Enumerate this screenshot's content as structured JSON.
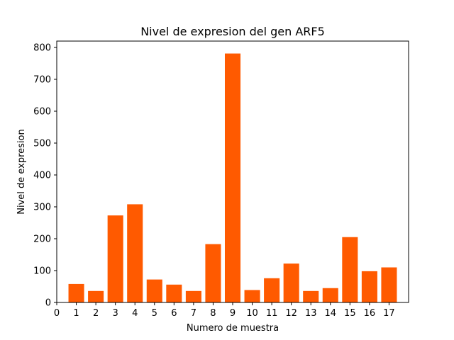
{
  "chart_data": {
    "type": "bar",
    "title": "Nivel de expresion del gen ARF5",
    "xlabel": "Numero de muestra",
    "ylabel": "Nivel de expresion",
    "categories": [
      1,
      2,
      3,
      4,
      5,
      6,
      7,
      8,
      9,
      10,
      11,
      12,
      13,
      14,
      15,
      16,
      17
    ],
    "values": [
      58,
      36,
      273,
      308,
      72,
      56,
      36,
      183,
      781,
      39,
      76,
      122,
      36,
      45,
      205,
      98,
      110
    ],
    "xlim": [
      0,
      18
    ],
    "ylim": [
      0,
      820
    ],
    "xticks": [
      "0",
      "1",
      "2",
      "3",
      "4",
      "5",
      "6",
      "7",
      "8",
      "9",
      "10",
      "11",
      "12",
      "13",
      "14",
      "15",
      "16",
      "17"
    ],
    "yticks": [
      "0",
      "100",
      "200",
      "300",
      "400",
      "500",
      "600",
      "700",
      "800"
    ],
    "bar_color": "#ff5a00",
    "grid": false,
    "legend": "none"
  }
}
